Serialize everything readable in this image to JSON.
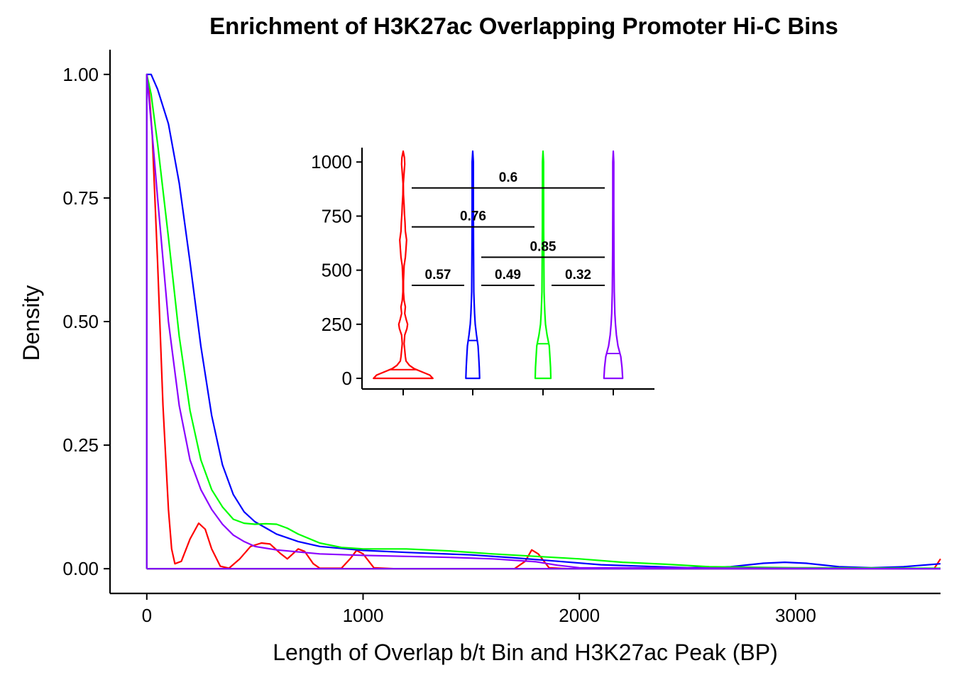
{
  "chart_data": [
    {
      "type": "line",
      "title": "Enrichment of H3K27ac Overlapping Promoter Hi-C Bins",
      "xlabel": "Length of Overlap b/t Bin and H3K27ac Peak (BP)",
      "ylabel": "Density",
      "xlim": [
        -170,
        3670
      ],
      "ylim": [
        -0.05,
        1.05
      ],
      "x_ticks": [
        "0",
        "1000",
        "2000",
        "3000"
      ],
      "y_ticks": [
        "0.00",
        "0.25",
        "0.50",
        "0.75",
        "1.00"
      ],
      "grid": false,
      "legend": "none",
      "series": [
        {
          "color": "#FF0000",
          "points": [
            [
              0,
              1.0
            ],
            [
              10,
              0.97
            ],
            [
              25,
              0.88
            ],
            [
              50,
              0.62
            ],
            [
              75,
              0.33
            ],
            [
              100,
              0.12
            ],
            [
              115,
              0.04
            ],
            [
              130,
              0.01
            ],
            [
              160,
              0.015
            ],
            [
              200,
              0.06
            ],
            [
              240,
              0.092
            ],
            [
              270,
              0.08
            ],
            [
              300,
              0.04
            ],
            [
              340,
              0.005
            ],
            [
              380,
              0.001
            ],
            [
              430,
              0.02
            ],
            [
              480,
              0.045
            ],
            [
              530,
              0.052
            ],
            [
              570,
              0.05
            ],
            [
              620,
              0.03
            ],
            [
              650,
              0.02
            ],
            [
              700,
              0.04
            ],
            [
              730,
              0.035
            ],
            [
              770,
              0.01
            ],
            [
              800,
              0.001
            ],
            [
              900,
              0.001
            ],
            [
              940,
              0.02
            ],
            [
              970,
              0.037
            ],
            [
              1000,
              0.03
            ],
            [
              1050,
              0.002
            ],
            [
              1150,
              0.0
            ],
            [
              1700,
              0.0
            ],
            [
              1750,
              0.015
            ],
            [
              1780,
              0.038
            ],
            [
              1810,
              0.03
            ],
            [
              1860,
              0.002
            ],
            [
              1950,
              0.0
            ],
            [
              3640,
              0.0
            ],
            [
              3670,
              0.02
            ]
          ]
        },
        {
          "color": "#0000FF",
          "points": [
            [
              0,
              1.0
            ],
            [
              20,
              1.0
            ],
            [
              50,
              0.97
            ],
            [
              100,
              0.9
            ],
            [
              150,
              0.78
            ],
            [
              200,
              0.62
            ],
            [
              250,
              0.45
            ],
            [
              300,
              0.31
            ],
            [
              350,
              0.21
            ],
            [
              400,
              0.15
            ],
            [
              450,
              0.115
            ],
            [
              500,
              0.095
            ],
            [
              600,
              0.07
            ],
            [
              700,
              0.055
            ],
            [
              800,
              0.045
            ],
            [
              1000,
              0.037
            ],
            [
              1200,
              0.033
            ],
            [
              1500,
              0.028
            ],
            [
              1700,
              0.022
            ],
            [
              1900,
              0.015
            ],
            [
              2100,
              0.008
            ],
            [
              2300,
              0.005
            ],
            [
              2500,
              0.002
            ],
            [
              2700,
              0.004
            ],
            [
              2850,
              0.011
            ],
            [
              2950,
              0.013
            ],
            [
              3050,
              0.011
            ],
            [
              3200,
              0.004
            ],
            [
              3350,
              0.002
            ],
            [
              3500,
              0.004
            ],
            [
              3670,
              0.01
            ]
          ]
        },
        {
          "color": "#00FF00",
          "points": [
            [
              0,
              1.0
            ],
            [
              20,
              0.96
            ],
            [
              50,
              0.86
            ],
            [
              100,
              0.67
            ],
            [
              150,
              0.47
            ],
            [
              200,
              0.32
            ],
            [
              250,
              0.22
            ],
            [
              300,
              0.16
            ],
            [
              350,
              0.125
            ],
            [
              400,
              0.1
            ],
            [
              450,
              0.092
            ],
            [
              500,
              0.09
            ],
            [
              550,
              0.091
            ],
            [
              600,
              0.09
            ],
            [
              650,
              0.082
            ],
            [
              700,
              0.07
            ],
            [
              800,
              0.052
            ],
            [
              900,
              0.043
            ],
            [
              1000,
              0.04
            ],
            [
              1200,
              0.04
            ],
            [
              1400,
              0.036
            ],
            [
              1600,
              0.03
            ],
            [
              1800,
              0.025
            ],
            [
              2000,
              0.02
            ],
            [
              2200,
              0.013
            ],
            [
              2400,
              0.009
            ],
            [
              2600,
              0.004
            ],
            [
              3000,
              0.002
            ],
            [
              3670,
              0.001
            ]
          ]
        },
        {
          "color": "#8B00FF",
          "points": [
            [
              0,
              1.0
            ],
            [
              25,
              0.88
            ],
            [
              50,
              0.75
            ],
            [
              100,
              0.5
            ],
            [
              150,
              0.33
            ],
            [
              200,
              0.22
            ],
            [
              250,
              0.16
            ],
            [
              300,
              0.12
            ],
            [
              350,
              0.09
            ],
            [
              400,
              0.068
            ],
            [
              450,
              0.055
            ],
            [
              500,
              0.045
            ],
            [
              600,
              0.038
            ],
            [
              800,
              0.03
            ],
            [
              1000,
              0.027
            ],
            [
              1200,
              0.025
            ],
            [
              1400,
              0.023
            ],
            [
              1600,
              0.02
            ],
            [
              1800,
              0.014
            ],
            [
              1900,
              0.007
            ],
            [
              2000,
              0.002
            ],
            [
              3670,
              0.0
            ]
          ]
        }
      ]
    },
    {
      "type": "violin",
      "ylim": [
        -50,
        1060
      ],
      "y_ticks": [
        "0",
        "250",
        "500",
        "750",
        "1000"
      ],
      "grid": false,
      "legend": "none",
      "groups": [
        {
          "color": "#FF0000",
          "median": 40,
          "max": 1050,
          "profile": [
            [
              0,
              0.95
            ],
            [
              15,
              0.85
            ],
            [
              30,
              0.6
            ],
            [
              45,
              0.35
            ],
            [
              60,
              0.2
            ],
            [
              80,
              0.09
            ],
            [
              100,
              0.07
            ],
            [
              130,
              0.05
            ],
            [
              160,
              0.03
            ],
            [
              200,
              0.05
            ],
            [
              230,
              0.12
            ],
            [
              250,
              0.14
            ],
            [
              270,
              0.1
            ],
            [
              300,
              0.05
            ],
            [
              330,
              0.07
            ],
            [
              360,
              0.03
            ],
            [
              400,
              0.01
            ],
            [
              450,
              0.01
            ],
            [
              520,
              0.03
            ],
            [
              560,
              0.07
            ],
            [
              600,
              0.09
            ],
            [
              640,
              0.11
            ],
            [
              680,
              0.07
            ],
            [
              720,
              0.06
            ],
            [
              760,
              0.04
            ],
            [
              800,
              0.03
            ],
            [
              850,
              0.01
            ],
            [
              900,
              0.005
            ],
            [
              950,
              0.03
            ],
            [
              990,
              0.05
            ],
            [
              1020,
              0.04
            ],
            [
              1050,
              0.0
            ]
          ]
        },
        {
          "color": "#0000FF",
          "median": 175,
          "max": 1050,
          "profile": [
            [
              0,
              0.22
            ],
            [
              50,
              0.21
            ],
            [
              100,
              0.19
            ],
            [
              150,
              0.17
            ],
            [
              200,
              0.12
            ],
            [
              250,
              0.08
            ],
            [
              300,
              0.06
            ],
            [
              350,
              0.045
            ],
            [
              400,
              0.035
            ],
            [
              500,
              0.03
            ],
            [
              600,
              0.025
            ],
            [
              700,
              0.022
            ],
            [
              800,
              0.02
            ],
            [
              900,
              0.02
            ],
            [
              1000,
              0.02
            ],
            [
              1050,
              0.0
            ]
          ]
        },
        {
          "color": "#00FF00",
          "median": 160,
          "max": 1050,
          "profile": [
            [
              0,
              0.25
            ],
            [
              50,
              0.24
            ],
            [
              100,
              0.22
            ],
            [
              150,
              0.2
            ],
            [
              200,
              0.13
            ],
            [
              250,
              0.08
            ],
            [
              300,
              0.06
            ],
            [
              350,
              0.045
            ],
            [
              400,
              0.035
            ],
            [
              500,
              0.03
            ],
            [
              600,
              0.025
            ],
            [
              700,
              0.02
            ],
            [
              800,
              0.02
            ],
            [
              900,
              0.018
            ],
            [
              1000,
              0.018
            ],
            [
              1050,
              0.0
            ]
          ]
        },
        {
          "color": "#8B00FF",
          "median": 115,
          "max": 1050,
          "profile": [
            [
              0,
              0.3
            ],
            [
              50,
              0.28
            ],
            [
              100,
              0.24
            ],
            [
              150,
              0.15
            ],
            [
              200,
              0.1
            ],
            [
              250,
              0.07
            ],
            [
              300,
              0.05
            ],
            [
              350,
              0.04
            ],
            [
              400,
              0.032
            ],
            [
              500,
              0.025
            ],
            [
              600,
              0.02
            ],
            [
              700,
              0.018
            ],
            [
              800,
              0.016
            ],
            [
              900,
              0.015
            ],
            [
              1000,
              0.015
            ],
            [
              1050,
              0.0
            ]
          ]
        }
      ],
      "comparisons": [
        {
          "from": 0,
          "to": 1,
          "label": "0.57"
        },
        {
          "from": 1,
          "to": 2,
          "label": "0.49"
        },
        {
          "from": 2,
          "to": 3,
          "label": "0.32"
        },
        {
          "from": 1,
          "to": 3,
          "label": "0.85"
        },
        {
          "from": 0,
          "to": 2,
          "label": "0.76"
        },
        {
          "from": 0,
          "to": 3,
          "label": "0.6"
        }
      ]
    }
  ]
}
